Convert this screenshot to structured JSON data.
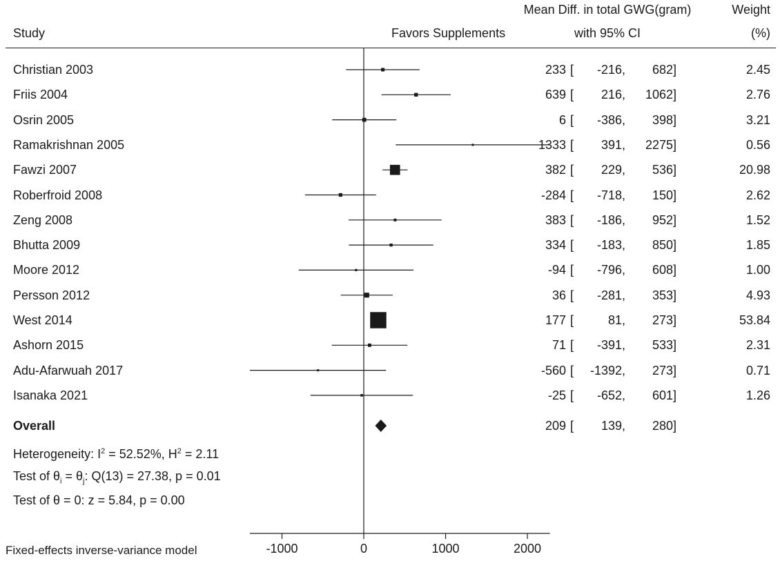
{
  "chart_data": {
    "type": "forest",
    "header": {
      "study": "Study",
      "favors": "Favors Supplements",
      "effect_line1": "Mean Diff. in total GWG(gram)",
      "effect_line2": "with 95% CI",
      "weight_line1": "Weight",
      "weight_line2": "(%)"
    },
    "studies": [
      {
        "name": "Christian 2003",
        "estimate": 233,
        "lower": -216,
        "upper": 682,
        "weight": "2.45"
      },
      {
        "name": "Friis 2004",
        "estimate": 639,
        "lower": 216,
        "upper": 1062,
        "weight": "2.76"
      },
      {
        "name": "Osrin 2005",
        "estimate": 6,
        "lower": -386,
        "upper": 398,
        "weight": "3.21"
      },
      {
        "name": "Ramakrishnan 2005",
        "estimate": 1333,
        "lower": 391,
        "upper": 2275,
        "weight": "0.56"
      },
      {
        "name": "Fawzi 2007",
        "estimate": 382,
        "lower": 229,
        "upper": 536,
        "weight": "20.98"
      },
      {
        "name": "Roberfroid 2008",
        "estimate": -284,
        "lower": -718,
        "upper": 150,
        "weight": "2.62"
      },
      {
        "name": "Zeng 2008",
        "estimate": 383,
        "lower": -186,
        "upper": 952,
        "weight": "1.52"
      },
      {
        "name": "Bhutta 2009",
        "estimate": 334,
        "lower": -183,
        "upper": 850,
        "weight": "1.85"
      },
      {
        "name": "Moore 2012",
        "estimate": -94,
        "lower": -796,
        "upper": 608,
        "weight": "1.00"
      },
      {
        "name": "Persson 2012",
        "estimate": 36,
        "lower": -281,
        "upper": 353,
        "weight": "4.93"
      },
      {
        "name": "West 2014",
        "estimate": 177,
        "lower": 81,
        "upper": 273,
        "weight": "53.84"
      },
      {
        "name": "Ashorn 2015",
        "estimate": 71,
        "lower": -391,
        "upper": 533,
        "weight": "2.31"
      },
      {
        "name": "Adu-Afarwuah 2017",
        "estimate": -560,
        "lower": -1392,
        "upper": 273,
        "weight": "0.71"
      },
      {
        "name": "Isanaka 2021",
        "estimate": -25,
        "lower": -652,
        "upper": 601,
        "weight": "1.26"
      }
    ],
    "overall": {
      "name": "Overall",
      "estimate": 209,
      "lower": 139,
      "upper": 280
    },
    "stats": {
      "heterogeneity": "Heterogeneity: I² = 52.52%, H² = 2.11",
      "q_test": "Test of θi = θj: Q(13) = 27.38, p = 0.01",
      "z_test": "Test of θ = 0: z = 5.84, p = 0.00"
    },
    "x_axis": {
      "ticks": [
        -1000,
        0,
        1000,
        2000
      ],
      "range": [
        -1392,
        2275
      ]
    },
    "footer": "Fixed-effects inverse-variance model",
    "colors": {
      "marker": "#1a1a1a",
      "line": "#1a1a1a"
    }
  }
}
